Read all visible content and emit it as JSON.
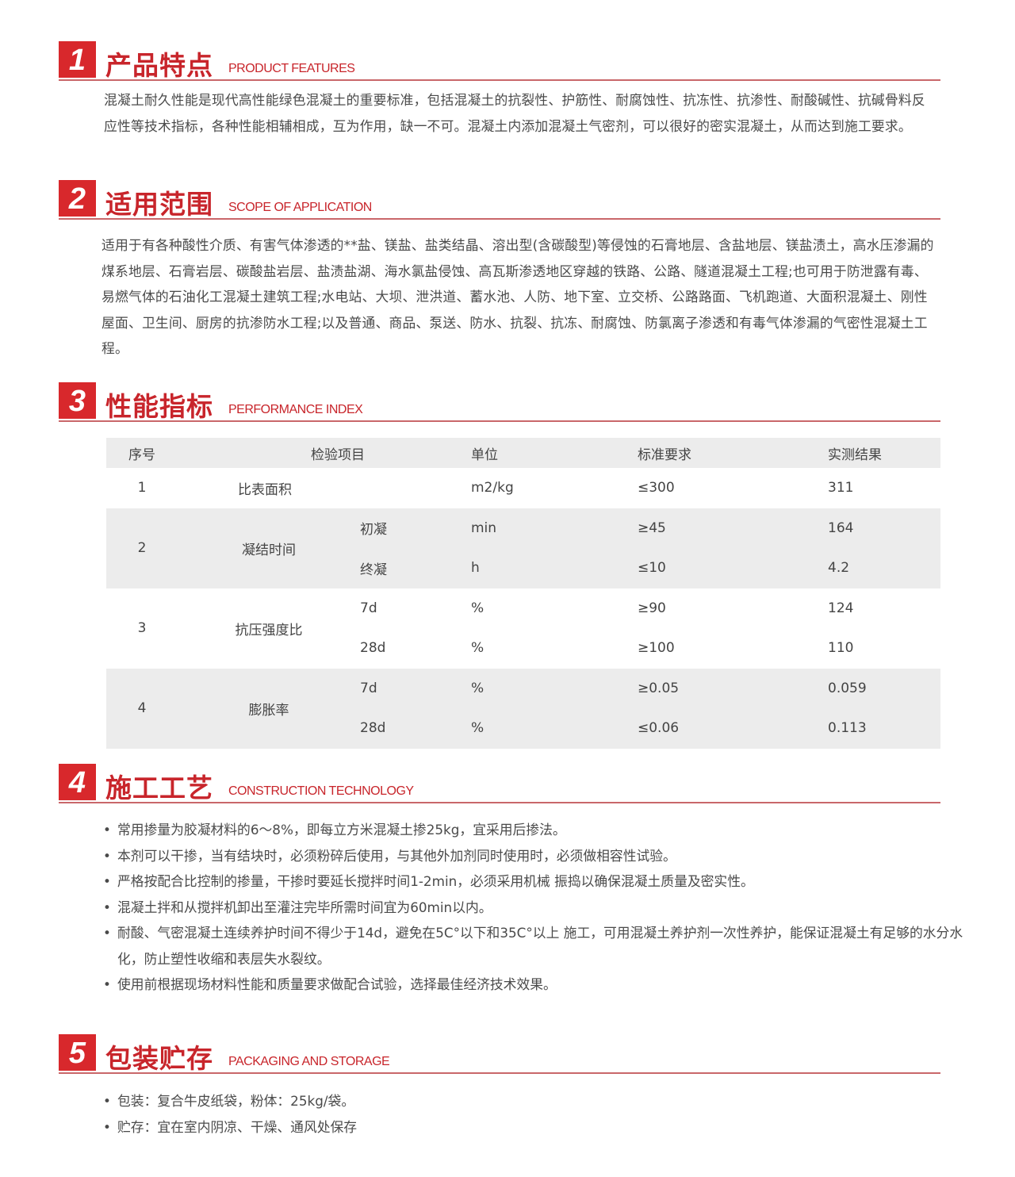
{
  "colors": {
    "accent": "#d8282c",
    "underline": "#c9676a",
    "table_band": "#ececec"
  },
  "sections": [
    {
      "num": "1",
      "zh": "产品特点",
      "en": "PRODUCT FEATURES",
      "text": "混凝土耐久性能是现代高性能绿色混凝土的重要标准，包括混凝土的抗裂性、护筋性、耐腐蚀性、抗冻性、抗渗性、耐酸碱性、抗碱骨料反应性等技术指标，各种性能相辅相成，互为作用，缺一不可。混凝土内添加混凝土气密剂，可以很好的密实混凝土，从而达到施工要求。"
    },
    {
      "num": "2",
      "zh": "适用范围",
      "en": "SCOPE OF APPLICATION",
      "text": "适用于有各种酸性介质、有害气体渗透的**盐、镁盐、盐类结晶、溶出型(含碳酸型)等侵蚀的石膏地层、含盐地层、镁盐渍土，高水压渗漏的煤系地层、石膏岩层、碳酸盐岩层、盐渍盐湖、海水氯盐侵蚀、高瓦斯渗透地区穿越的铁路、公路、隧道混凝土工程;也可用于防泄露有毒、易燃气体的石油化工混凝土建筑工程;水电站、大坝、泄洪道、蓄水池、人防、地下室、立交桥、公路路面、飞机跑道、大面积混凝土、刚性屋面、卫生间、厨房的抗渗防水工程;以及普通、商品、泵送、防水、抗裂、抗冻、耐腐蚀、防氯离子渗透和有毒气体渗漏的气密性混凝土工程。"
    },
    {
      "num": "3",
      "zh": "性能指标",
      "en": "PERFORMANCE INDEX"
    },
    {
      "num": "4",
      "zh": "施工工艺",
      "en": "CONSTRUCTION TECHNOLOGY",
      "items": [
        "常用掺量为胶凝材料的6～8%，即每立方米混凝土掺25kg，宜采用后掺法。",
        "本剂可以干掺，当有结块时，必须粉碎后使用，与其他外加剂同时使用时，必须做相容性试验。",
        "严格按配合比控制的掺量，干掺时要延长搅拌时间1-2min，必须采用机械 振捣以确保混凝土质量及密实性。",
        "混凝土拌和从搅拌机卸出至灌注完毕所需时间宜为60min以内。",
        "耐酸、气密混凝土连续养护时间不得少于14d，避免在5C°以下和35C°以上 施工，可用混凝土养护剂一次性养护，能保证混凝土有足够的水分水化，防止塑性收缩和表层失水裂纹。",
        "使用前根据现场材料性能和质量要求做配合试验，选择最佳经济技术效果。"
      ]
    },
    {
      "num": "5",
      "zh": "包装贮存",
      "en": "PACKAGING AND STORAGE",
      "items": [
        "包装：复合牛皮纸袋，粉体：25kg/袋。",
        "贮存：宜在室内阴凉、干燥、通风处保存"
      ]
    }
  ],
  "table": {
    "headers": [
      "序号",
      "检验项目",
      "单位",
      "标准要求",
      "实测结果"
    ],
    "rows": [
      [
        "1",
        "比表面积",
        "",
        "m2/kg",
        "≤300",
        "311"
      ],
      [
        "2",
        "凝结时间",
        "初凝",
        "min",
        "≥45",
        "164"
      ],
      [
        "",
        "",
        "终凝",
        "h",
        "≤10",
        "4.2"
      ],
      [
        "3",
        "抗压强度比",
        "7d",
        "%",
        "≥90",
        "124"
      ],
      [
        "",
        "",
        "28d",
        "%",
        "≥100",
        "110"
      ],
      [
        "4",
        "膨胀率",
        "7d",
        "%",
        "≥0.05",
        "0.059"
      ],
      [
        "",
        "",
        "28d",
        "%",
        "≤0.06",
        "0.113"
      ]
    ]
  }
}
